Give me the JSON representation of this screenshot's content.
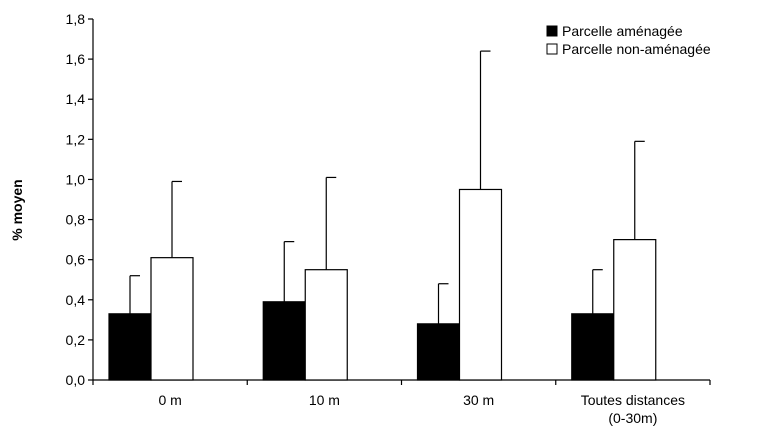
{
  "chart_data": {
    "type": "bar",
    "title": "",
    "xlabel": "",
    "ylabel": "% moyen",
    "ylim": [
      0,
      1.8
    ],
    "yticks": [
      "0,0",
      "0,2",
      "0,4",
      "0,6",
      "0,8",
      "1,0",
      "1,2",
      "1,4",
      "1,6",
      "1,8"
    ],
    "ytick_values": [
      0,
      0.2,
      0.4,
      0.6,
      0.8,
      1.0,
      1.2,
      1.4,
      1.6,
      1.8
    ],
    "categories": [
      [
        "0 m"
      ],
      [
        "10 m"
      ],
      [
        "30 m"
      ],
      [
        "Toutes distances",
        "(0-30m)"
      ]
    ],
    "series": [
      {
        "name": "Parcelle aménagée",
        "values": [
          0.33,
          0.39,
          0.28,
          0.33
        ],
        "error_upper": [
          0.52,
          0.69,
          0.48,
          0.55
        ],
        "color": "#000000"
      },
      {
        "name": "Parcelle non-aménagée",
        "values": [
          0.61,
          0.55,
          0.95,
          0.7
        ],
        "error_upper": [
          0.99,
          1.01,
          1.64,
          1.19
        ],
        "color": "#ffffff"
      }
    ],
    "legend_position": "top-right",
    "grid": false
  }
}
